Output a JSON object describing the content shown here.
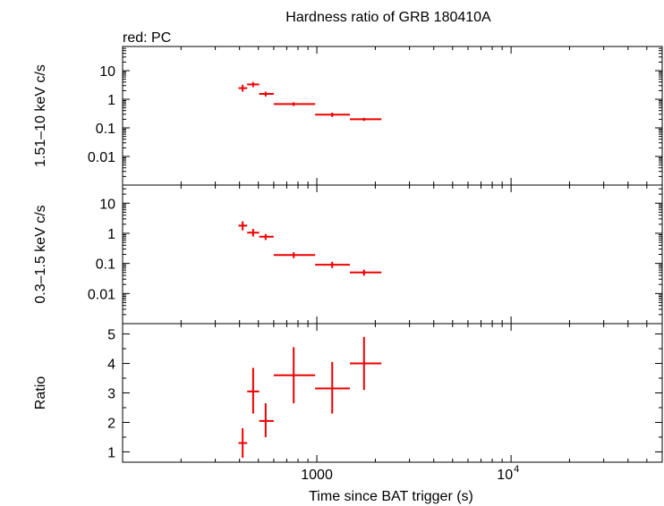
{
  "chart_data": {
    "type": "scatter",
    "title": "Hardness ratio of GRB 180410A",
    "legend_note": "red: PC",
    "xlabel": "Time since BAT trigger (s)",
    "xscale": "log",
    "xlim": [
      100,
      60000
    ],
    "x_major_ticks": [
      1000,
      10000
    ],
    "x_tick_labels": [
      "1000",
      "10",
      "4"
    ],
    "colors": {
      "data": "#ee0000",
      "axis": "#000000"
    },
    "panels": [
      {
        "name": "hard",
        "ylabel": "1.51–10 keV c/s",
        "yscale": "log",
        "ylim": [
          0.001,
          70
        ],
        "y_ticks": [
          0.01,
          0.1,
          1,
          10
        ],
        "y_tick_labels": [
          "0.01",
          "0.1",
          "1",
          "10"
        ],
        "points": [
          {
            "x": 415,
            "xlo": 395,
            "xhi": 438,
            "y": 2.45,
            "ylo": 1.85,
            "yhi": 3.2
          },
          {
            "x": 470,
            "xlo": 438,
            "xhi": 505,
            "y": 3.3,
            "ylo": 2.65,
            "yhi": 4.0
          },
          {
            "x": 545,
            "xlo": 505,
            "xhi": 600,
            "y": 1.55,
            "ylo": 1.25,
            "yhi": 1.85
          },
          {
            "x": 760,
            "xlo": 600,
            "xhi": 980,
            "y": 0.68,
            "ylo": 0.58,
            "yhi": 0.78
          },
          {
            "x": 1200,
            "xlo": 980,
            "xhi": 1480,
            "y": 0.29,
            "ylo": 0.24,
            "yhi": 0.34
          },
          {
            "x": 1750,
            "xlo": 1480,
            "xhi": 2150,
            "y": 0.2,
            "ylo": 0.175,
            "yhi": 0.225
          }
        ]
      },
      {
        "name": "soft",
        "ylabel": "0.3–1.5 keV c/s",
        "yscale": "log",
        "ylim": [
          0.001,
          40
        ],
        "y_ticks": [
          0.01,
          0.1,
          1,
          10
        ],
        "y_tick_labels": [
          "0.01",
          "0.1",
          "1",
          "10"
        ],
        "points": [
          {
            "x": 415,
            "xlo": 395,
            "xhi": 438,
            "y": 1.8,
            "ylo": 1.25,
            "yhi": 2.5
          },
          {
            "x": 470,
            "xlo": 438,
            "xhi": 505,
            "y": 1.05,
            "ylo": 0.78,
            "yhi": 1.4
          },
          {
            "x": 545,
            "xlo": 505,
            "xhi": 600,
            "y": 0.77,
            "ylo": 0.6,
            "yhi": 0.95
          },
          {
            "x": 760,
            "xlo": 600,
            "xhi": 980,
            "y": 0.19,
            "ylo": 0.15,
            "yhi": 0.235
          },
          {
            "x": 1200,
            "xlo": 980,
            "xhi": 1480,
            "y": 0.09,
            "ylo": 0.07,
            "yhi": 0.113
          },
          {
            "x": 1750,
            "xlo": 1480,
            "xhi": 2150,
            "y": 0.05,
            "ylo": 0.039,
            "yhi": 0.062
          }
        ]
      },
      {
        "name": "ratio",
        "ylabel": "Ratio",
        "yscale": "linear",
        "ylim": [
          0.65,
          5.35
        ],
        "y_ticks": [
          1,
          2,
          3,
          4,
          5
        ],
        "y_tick_labels": [
          "1",
          "2",
          "3",
          "4",
          "5"
        ],
        "points": [
          {
            "x": 415,
            "xlo": 395,
            "xhi": 438,
            "y": 1.3,
            "ylo": 0.8,
            "yhi": 1.8
          },
          {
            "x": 470,
            "xlo": 438,
            "xhi": 505,
            "y": 3.05,
            "ylo": 2.3,
            "yhi": 3.85
          },
          {
            "x": 545,
            "xlo": 505,
            "xhi": 600,
            "y": 2.05,
            "ylo": 1.5,
            "yhi": 2.65
          },
          {
            "x": 760,
            "xlo": 600,
            "xhi": 980,
            "y": 3.6,
            "ylo": 2.65,
            "yhi": 4.55
          },
          {
            "x": 1200,
            "xlo": 980,
            "xhi": 1480,
            "y": 3.15,
            "ylo": 2.3,
            "yhi": 4.05
          },
          {
            "x": 1750,
            "xlo": 1480,
            "xhi": 2150,
            "y": 4.0,
            "ylo": 3.1,
            "yhi": 4.9
          }
        ]
      }
    ]
  }
}
